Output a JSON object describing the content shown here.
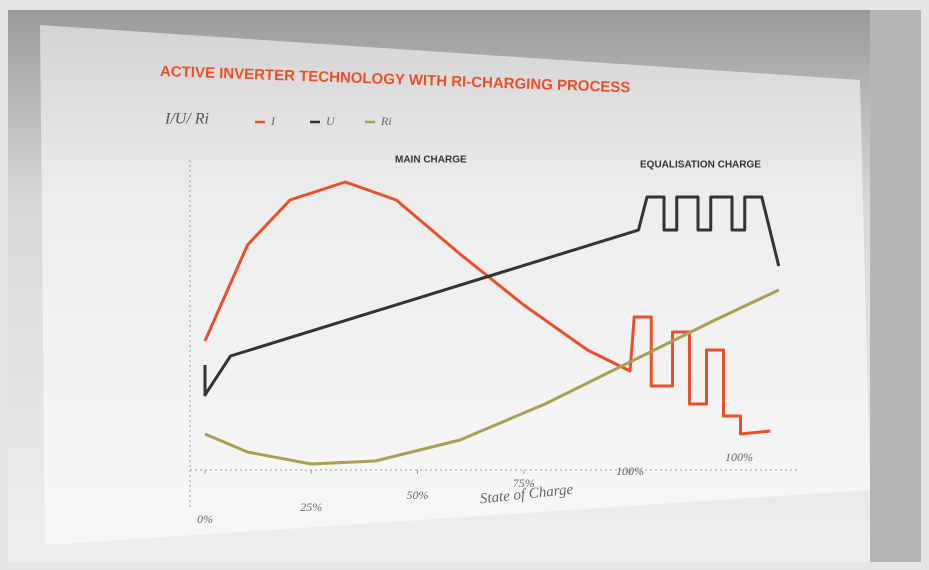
{
  "chart_data": {
    "type": "line",
    "title": "ACTIVE INVERTER TECHNOLOGY WITH RI-CHARGING PROCESS",
    "y_label": "I/U/ Ri",
    "x_label": "State of Charge",
    "annotations": [
      "MAIN CHARGE",
      "EQUALISATION CHARGE",
      "100%"
    ],
    "xlim": [
      0,
      135
    ],
    "ylim": [
      0,
      100
    ],
    "xticks": [
      {
        "value": 0,
        "label": "0%"
      },
      {
        "value": 25,
        "label": "25%"
      },
      {
        "value": 50,
        "label": "50%"
      },
      {
        "value": 75,
        "label": "75%"
      },
      {
        "value": 100,
        "label": "100%"
      }
    ],
    "series": [
      {
        "name": "I",
        "color": "#e8502a",
        "x": [
          0,
          10,
          20,
          33,
          45,
          60,
          75,
          90,
          100,
          101,
          105,
          105,
          110,
          110,
          114,
          114,
          118,
          118,
          122,
          122,
          126,
          126,
          133
        ],
        "values": [
          43,
          75,
          90,
          96,
          90,
          72,
          55,
          40,
          33,
          51,
          51,
          28,
          28,
          46,
          46,
          22,
          22,
          40,
          40,
          18,
          18,
          12,
          13
        ]
      },
      {
        "name": "U",
        "color": "#333333",
        "x": [
          0,
          0,
          6,
          102,
          104,
          108,
          108,
          111,
          111,
          116,
          116,
          119,
          119,
          124,
          124,
          127,
          127,
          131,
          135
        ],
        "values": [
          35,
          25,
          38,
          80,
          91,
          91,
          80,
          80,
          91,
          91,
          80,
          80,
          91,
          91,
          80,
          80,
          91,
          91,
          68
        ]
      },
      {
        "name": "Ri",
        "color": "#a9a050",
        "x": [
          0,
          10,
          25,
          40,
          60,
          80,
          100,
          120,
          135
        ],
        "values": [
          12,
          6,
          2,
          3,
          10,
          22,
          36,
          50,
          60
        ]
      }
    ]
  }
}
